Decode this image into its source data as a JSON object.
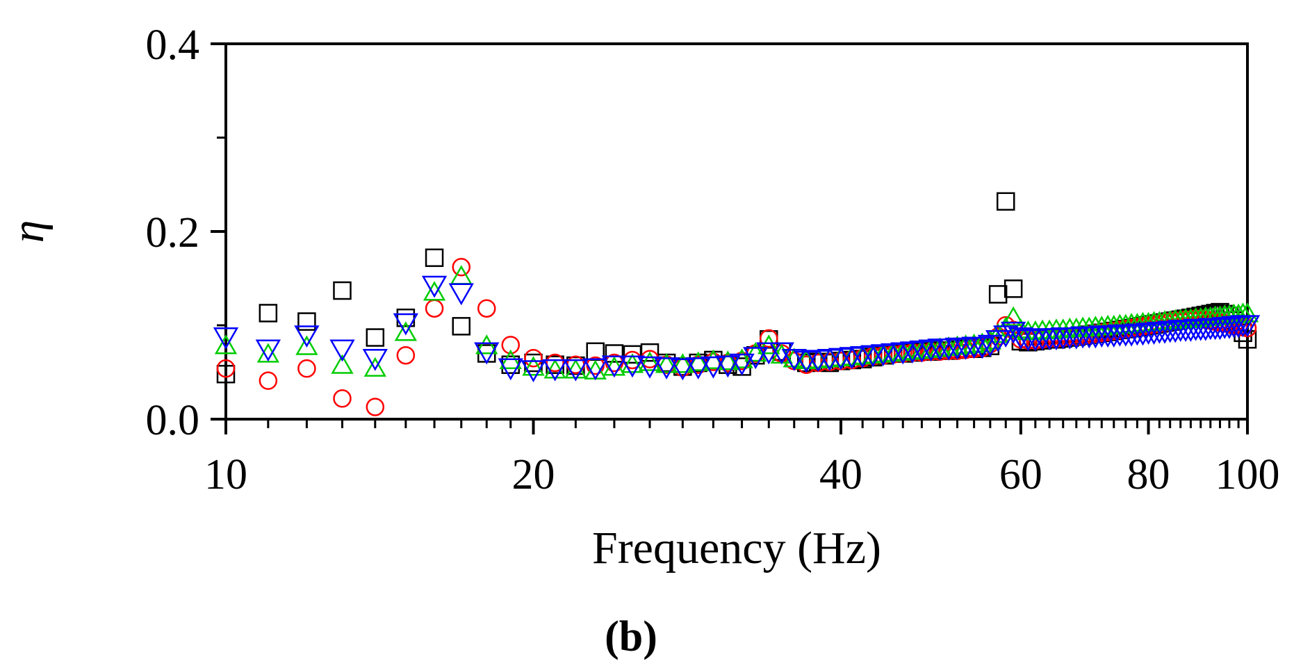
{
  "chart_data": {
    "type": "scatter",
    "title": "",
    "xlabel": "Frequency (Hz)",
    "ylabel": "η",
    "panel_label": "(b)",
    "x_scale": "log",
    "xlim": [
      10,
      100
    ],
    "ylim": [
      0,
      0.4
    ],
    "x_ticks": [
      {
        "value": 10,
        "label": "10"
      },
      {
        "value": 20,
        "label": "20"
      },
      {
        "value": 40,
        "label": "40"
      },
      {
        "value": 60,
        "label": "60"
      },
      {
        "value": 80,
        "label": "80"
      },
      {
        "value": 100,
        "label": "100"
      }
    ],
    "y_ticks": [
      {
        "value": 0.0,
        "label": "0.0"
      },
      {
        "value": 0.2,
        "label": "0.2"
      },
      {
        "value": 0.4,
        "label": "0.4"
      }
    ],
    "x_minor_ticks": [
      11,
      12,
      13,
      14,
      15,
      16,
      17,
      18,
      19,
      22,
      24,
      26,
      28,
      30,
      32,
      34,
      36,
      38,
      42,
      44,
      46,
      48,
      50,
      52,
      54,
      56,
      58,
      62,
      64,
      66,
      68,
      70,
      72,
      74,
      76,
      78,
      82,
      84,
      86,
      88,
      90,
      92,
      94,
      96,
      98
    ],
    "y_minor_ticks": [
      0.1,
      0.3
    ],
    "series": [
      {
        "name": "series-1",
        "marker": "square",
        "color": "#000000",
        "x": [
          10,
          11,
          12,
          13,
          14,
          15,
          16,
          17,
          18,
          19,
          20,
          21,
          22,
          23,
          24,
          25,
          26,
          27,
          28,
          29,
          30,
          31,
          32,
          33,
          34,
          35,
          36,
          37,
          38,
          39,
          40,
          41,
          42,
          43,
          44,
          45,
          46,
          47,
          48,
          49,
          50,
          51,
          52,
          53,
          54,
          55,
          56,
          57,
          58,
          59,
          60,
          61,
          62,
          63,
          64,
          65,
          66,
          67,
          68,
          69,
          70,
          71,
          72,
          73,
          74,
          75,
          76,
          77,
          78,
          79,
          80,
          81,
          82,
          83,
          84,
          85,
          86,
          87,
          88,
          89,
          90,
          91,
          92,
          93,
          94,
          95,
          96,
          97,
          98,
          99,
          100
        ],
        "y": [
          0.048,
          0.113,
          0.104,
          0.137,
          0.087,
          0.108,
          0.172,
          0.099,
          0.07,
          0.058,
          0.06,
          0.058,
          0.057,
          0.072,
          0.07,
          0.069,
          0.071,
          0.06,
          0.056,
          0.06,
          0.063,
          0.058,
          0.056,
          0.068,
          0.085,
          0.072,
          0.065,
          0.06,
          0.061,
          0.06,
          0.062,
          0.063,
          0.064,
          0.066,
          0.068,
          0.07,
          0.07,
          0.071,
          0.072,
          0.072,
          0.073,
          0.073,
          0.074,
          0.075,
          0.075,
          0.076,
          0.078,
          0.133,
          0.232,
          0.139,
          0.083,
          0.082,
          0.083,
          0.084,
          0.085,
          0.085,
          0.086,
          0.087,
          0.088,
          0.089,
          0.09,
          0.091,
          0.092,
          0.093,
          0.094,
          0.095,
          0.096,
          0.097,
          0.098,
          0.099,
          0.1,
          0.101,
          0.102,
          0.103,
          0.104,
          0.105,
          0.106,
          0.107,
          0.108,
          0.109,
          0.11,
          0.111,
          0.112,
          0.113,
          0.114,
          0.112,
          0.11,
          0.105,
          0.1,
          0.092,
          0.085
        ]
      },
      {
        "name": "series-2",
        "marker": "circle",
        "color": "#ff0000",
        "x": [
          10,
          11,
          12,
          13,
          14,
          15,
          16,
          17,
          18,
          19,
          20,
          21,
          22,
          23,
          24,
          25,
          26,
          27,
          28,
          29,
          30,
          31,
          32,
          33,
          34,
          35,
          36,
          37,
          38,
          39,
          40,
          41,
          42,
          43,
          44,
          45,
          46,
          47,
          48,
          49,
          50,
          51,
          52,
          53,
          54,
          55,
          56,
          57,
          58,
          59,
          60,
          61,
          62,
          63,
          64,
          65,
          66,
          67,
          68,
          69,
          70,
          71,
          72,
          73,
          74,
          75,
          76,
          77,
          78,
          79,
          80,
          81,
          82,
          83,
          84,
          85,
          86,
          87,
          88,
          89,
          90,
          91,
          92,
          93,
          94,
          95,
          96,
          97,
          98,
          99,
          100
        ],
        "y": [
          0.054,
          0.041,
          0.054,
          0.022,
          0.013,
          0.068,
          0.118,
          0.162,
          0.118,
          0.079,
          0.065,
          0.06,
          0.058,
          0.057,
          0.06,
          0.063,
          0.064,
          0.058,
          0.055,
          0.058,
          0.061,
          0.06,
          0.062,
          0.07,
          0.086,
          0.07,
          0.062,
          0.058,
          0.06,
          0.061,
          0.062,
          0.063,
          0.065,
          0.067,
          0.068,
          0.069,
          0.07,
          0.071,
          0.071,
          0.072,
          0.072,
          0.073,
          0.073,
          0.074,
          0.075,
          0.076,
          0.08,
          0.088,
          0.1,
          0.095,
          0.085,
          0.084,
          0.084,
          0.085,
          0.086,
          0.086,
          0.087,
          0.088,
          0.088,
          0.089,
          0.09,
          0.091,
          0.092,
          0.093,
          0.094,
          0.095,
          0.096,
          0.097,
          0.098,
          0.099,
          0.1,
          0.101,
          0.102,
          0.103,
          0.104,
          0.105,
          0.105,
          0.106,
          0.106,
          0.107,
          0.107,
          0.106,
          0.105,
          0.104,
          0.103,
          0.102,
          0.101,
          0.1,
          0.099,
          0.098,
          0.097
        ]
      },
      {
        "name": "series-3",
        "marker": "triangle-up",
        "color": "#00cc00",
        "x": [
          10,
          11,
          12,
          13,
          14,
          15,
          16,
          17,
          18,
          19,
          20,
          21,
          22,
          23,
          24,
          25,
          26,
          27,
          28,
          29,
          30,
          31,
          32,
          33,
          34,
          35,
          36,
          37,
          38,
          39,
          40,
          41,
          42,
          43,
          44,
          45,
          46,
          47,
          48,
          49,
          50,
          51,
          52,
          53,
          54,
          55,
          56,
          57,
          58,
          59,
          60,
          61,
          62,
          63,
          64,
          65,
          66,
          67,
          68,
          69,
          70,
          71,
          72,
          73,
          74,
          75,
          76,
          77,
          78,
          79,
          80,
          81,
          82,
          83,
          84,
          85,
          86,
          87,
          88,
          89,
          90,
          91,
          92,
          93,
          94,
          95,
          96,
          97,
          98,
          99,
          100
        ],
        "y": [
          0.078,
          0.069,
          0.077,
          0.057,
          0.054,
          0.092,
          0.135,
          0.152,
          0.078,
          0.062,
          0.055,
          0.052,
          0.052,
          0.051,
          0.055,
          0.058,
          0.06,
          0.058,
          0.058,
          0.06,
          0.062,
          0.061,
          0.063,
          0.07,
          0.078,
          0.068,
          0.064,
          0.062,
          0.063,
          0.064,
          0.065,
          0.066,
          0.067,
          0.068,
          0.069,
          0.07,
          0.071,
          0.072,
          0.073,
          0.074,
          0.075,
          0.076,
          0.077,
          0.078,
          0.079,
          0.08,
          0.083,
          0.09,
          0.097,
          0.108,
          0.095,
          0.093,
          0.093,
          0.094,
          0.094,
          0.095,
          0.095,
          0.096,
          0.096,
          0.097,
          0.097,
          0.098,
          0.098,
          0.099,
          0.099,
          0.1,
          0.1,
          0.101,
          0.101,
          0.102,
          0.102,
          0.103,
          0.103,
          0.104,
          0.104,
          0.105,
          0.105,
          0.106,
          0.106,
          0.107,
          0.107,
          0.108,
          0.108,
          0.109,
          0.109,
          0.11,
          0.11,
          0.111,
          0.111,
          0.112,
          0.112
        ]
      },
      {
        "name": "series-4",
        "marker": "triangle-down",
        "color": "#0000ff",
        "x": [
          10,
          11,
          12,
          13,
          14,
          15,
          16,
          17,
          18,
          19,
          20,
          21,
          22,
          23,
          24,
          25,
          26,
          27,
          28,
          29,
          30,
          31,
          32,
          33,
          34,
          35,
          36,
          37,
          38,
          39,
          40,
          41,
          42,
          43,
          44,
          45,
          46,
          47,
          48,
          49,
          50,
          51,
          52,
          53,
          54,
          55,
          56,
          57,
          58,
          59,
          60,
          61,
          62,
          63,
          64,
          65,
          66,
          67,
          68,
          69,
          70,
          71,
          72,
          73,
          74,
          75,
          76,
          77,
          78,
          79,
          80,
          81,
          82,
          83,
          84,
          85,
          86,
          87,
          88,
          89,
          90,
          91,
          92,
          93,
          94,
          95,
          96,
          97,
          98,
          99,
          100
        ],
        "y": [
          0.088,
          0.075,
          0.09,
          0.075,
          0.065,
          0.103,
          0.143,
          0.135,
          0.072,
          0.055,
          0.053,
          0.054,
          0.054,
          0.055,
          0.058,
          0.058,
          0.057,
          0.056,
          0.055,
          0.056,
          0.057,
          0.058,
          0.06,
          0.067,
          0.072,
          0.072,
          0.065,
          0.063,
          0.064,
          0.065,
          0.066,
          0.067,
          0.068,
          0.069,
          0.07,
          0.071,
          0.072,
          0.073,
          0.074,
          0.075,
          0.076,
          0.076,
          0.077,
          0.077,
          0.078,
          0.078,
          0.08,
          0.085,
          0.09,
          0.094,
          0.088,
          0.086,
          0.086,
          0.087,
          0.087,
          0.087,
          0.088,
          0.088,
          0.088,
          0.089,
          0.089,
          0.089,
          0.09,
          0.09,
          0.09,
          0.091,
          0.091,
          0.091,
          0.092,
          0.092,
          0.093,
          0.093,
          0.094,
          0.094,
          0.095,
          0.095,
          0.096,
          0.096,
          0.096,
          0.097,
          0.097,
          0.097,
          0.098,
          0.098,
          0.098,
          0.099,
          0.099,
          0.1,
          0.1,
          0.101,
          0.101
        ]
      }
    ]
  }
}
